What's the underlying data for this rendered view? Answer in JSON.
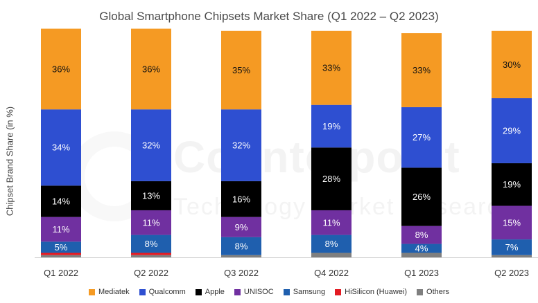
{
  "chart_data": {
    "type": "bar",
    "stacked": true,
    "title": "Global Smartphone Chipsets Market Share (Q1 2022 – Q2 2023)",
    "ylabel": "Chipset Brand Share (in %)",
    "xlabel": "",
    "ylim": [
      0,
      100
    ],
    "legend_position": "bottom",
    "grid": false,
    "categories": [
      "Q1 2022",
      "Q2 2022",
      "Q3 2022",
      "Q4 2022",
      "Q1 2023",
      "Q2 2023"
    ],
    "series": [
      {
        "name": "Others",
        "color": "#7f7f7f",
        "values": [
          1,
          1,
          1,
          2,
          2,
          1
        ],
        "labels": [
          "",
          "",
          "",
          "",
          "",
          ""
        ]
      },
      {
        "name": "HiSilicon (Huawei)",
        "color": "#e31b23",
        "values": [
          1,
          1,
          0,
          0,
          0,
          0
        ],
        "labels": [
          "",
          "",
          "",
          "",
          "",
          ""
        ]
      },
      {
        "name": "Samsung",
        "color": "#1f5fae",
        "values": [
          5,
          8,
          8,
          8,
          4,
          7
        ],
        "labels": [
          "5%",
          "8%",
          "8%",
          "8%",
          "4%",
          "7%"
        ]
      },
      {
        "name": "UNISOC",
        "color": "#7030a0",
        "values": [
          11,
          11,
          9,
          11,
          8,
          15
        ],
        "labels": [
          "11%",
          "11%",
          "9%",
          "11%",
          "8%",
          "15%"
        ]
      },
      {
        "name": "Apple",
        "color": "#000000",
        "values": [
          14,
          13,
          16,
          28,
          26,
          19
        ],
        "labels": [
          "14%",
          "13%",
          "16%",
          "28%",
          "26%",
          "19%"
        ]
      },
      {
        "name": "Qualcomm",
        "color": "#2e4fd1",
        "values": [
          34,
          32,
          32,
          19,
          27,
          29
        ],
        "labels": [
          "34%",
          "32%",
          "32%",
          "19%",
          "27%",
          "29%"
        ]
      },
      {
        "name": "Mediatek",
        "color": "#f59a23",
        "values": [
          36,
          36,
          35,
          33,
          33,
          30
        ],
        "labels": [
          "36%",
          "36%",
          "35%",
          "33%",
          "33%",
          "30%"
        ]
      }
    ],
    "legend_order": [
      "Mediatek",
      "Qualcomm",
      "Apple",
      "UNISOC",
      "Samsung",
      "HiSilicon (Huawei)",
      "Others"
    ]
  },
  "watermark": {
    "main": "Counterpoint",
    "sub": "Technology Market Research"
  }
}
